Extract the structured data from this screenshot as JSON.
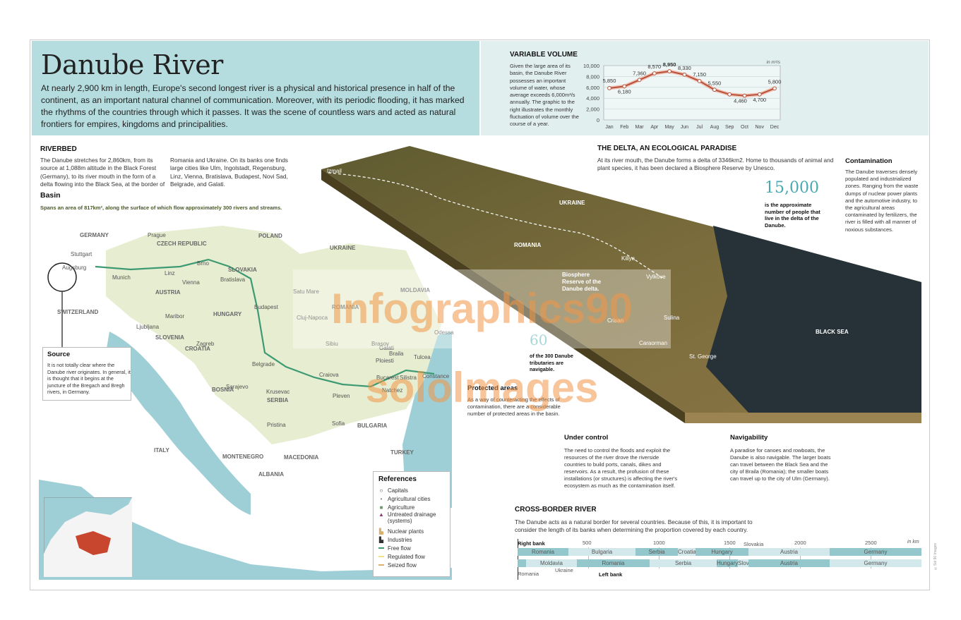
{
  "header": {
    "title": "Danube River",
    "intro": "At nearly 2,900 km in length, Europe's second longest river is a physical and historical presence in half of the continent, as an important natural channel of communication. Moreover, with its periodic flooding, it has marked the rhythms of the countries through which it passes. It was the scene of countless wars and acted as natural frontiers for empires, kingdoms and principalities."
  },
  "volume": {
    "title": "VARIABLE VOLUME",
    "text": "Given the large area of its basin, the Danube River possesses an important volume of water, whose average exceeds 6,000m³/s annually. The graphic to the right illustrates the monthly fluctuation of volume over the course of a year.",
    "unit": "in m³/s"
  },
  "chart_data": {
    "type": "line",
    "categories": [
      "Jan",
      "Feb",
      "Mar",
      "Apr",
      "May",
      "Jun",
      "Jul",
      "Aug",
      "Sep",
      "Oct",
      "Nov",
      "Dec"
    ],
    "values": [
      5850,
      6180,
      7360,
      8570,
      8950,
      8330,
      7150,
      5550,
      4700,
      4460,
      4700,
      5800
    ],
    "data_labels": [
      "5,850",
      "6,180",
      "7,360",
      "8,570",
      "8,950",
      "8,330",
      "7,150",
      "5,550",
      "",
      "4,460",
      "4,700",
      "5,800"
    ],
    "yticks": [
      "0",
      "2,000",
      "4,000",
      "6,000",
      "8,000",
      "10,000"
    ],
    "ylim": [
      0,
      10000
    ],
    "grid": true,
    "ylabel": "in m³/s",
    "highlight": "May",
    "color": "#b5523b"
  },
  "riverbed": {
    "title": "RIVERBED",
    "col1": "The Danube stretches for 2,860km, from its source at 1,088m altitude in the Black Forest (Germany), to its river mouth in the form of a delta flowing into the Black Sea, at the border of",
    "col2": "Romania and Ukraine. On its banks one finds large cities like Ulm, Ingolstadt, Regensburg, Linz, Vienna, Bratislava, Budapest, Novi Sad, Belgrade, and Galati."
  },
  "basin": {
    "title": "Basin",
    "text": "Spans an area of 817km², along the surface of which flow approximately 300 rivers and streams."
  },
  "source": {
    "title": "Source",
    "text": "It is not totally clear where the Danube river originates. In general, it is thought that it begins at the juncture of the Bregach and Bregh rivers, in Germany."
  },
  "map_labels": [
    "GERMANY",
    "CZECH REPUBLIC",
    "POLAND",
    "UKRAINE",
    "SLOVAKIA",
    "AUSTRIA",
    "HUNGARY",
    "SWITZERLAND",
    "SLOVENIA",
    "CROATIA",
    "BOSNIA",
    "SERBIA",
    "ROMANIA",
    "MOLDAVIA",
    "BULGARIA",
    "MONTENEGRO",
    "ITALY",
    "MACEDONIA",
    "ALBANIA",
    "TURKEY",
    "Prague",
    "Stuttgart",
    "Augsburg",
    "Munich",
    "Linz",
    "Brno",
    "Vienna",
    "Bratislava",
    "Budapest",
    "Maribor",
    "Ljubljana",
    "Zagreb",
    "Belgrade",
    "Sarajevo",
    "Krusevac",
    "Pristina",
    "Satu Mare",
    "Cluj-Napoca",
    "Sibiu",
    "Brasov",
    "Galati",
    "Braila",
    "Tulcea",
    "Odessa",
    "Ploiesti",
    "Craiova",
    "Bucarest",
    "Silistra",
    "Constance",
    "Natchez",
    "Pleven",
    "Sofia"
  ],
  "references": {
    "title": "References",
    "items": [
      "Capitals",
      "Agricultural cities",
      "Agriculture",
      "Untreated drainage (systems)",
      "Nuclear plants",
      "Industries",
      "Free flow",
      "Regulated flow",
      "Seized flow"
    ],
    "colors": {
      "free": "#3d9a72",
      "regulated": "#f2e08a",
      "seized": "#e0b070",
      "drainage": "#8a3a78",
      "agriculture": "#6a9a6a"
    }
  },
  "delta": {
    "title": "THE DELTA, AN ECOLOGICAL PARADISE",
    "text": "At its river mouth, the Danube forms a delta of 3346km2. Home to thousands of animal and plant species, it has been declared a Biosphere Reserve by Unesco.",
    "stat": "15,000",
    "stat_text": "is the approximate number of people that live in the delta of the Danube.",
    "labels": [
      "Izmail",
      "UKRAINE",
      "ROMANIA",
      "Kiliya",
      "Vylkove",
      "Biosphere Reserve of the Danube delta.",
      "Sulina",
      "Crisan",
      "Caraorman",
      "St. George",
      "BLACK SEA"
    ]
  },
  "contamination": {
    "title": "Contamination",
    "text": "The Danube traverses densely populated and industrialized zones. Ranging from the waste dumps of nuclear power plants and the automotive industry, to the agricultural areas contaminated by fertilizers, the river is filled with all manner of noxious substances."
  },
  "tributaries": {
    "stat": "60",
    "text": "of the 300 Danube tributaries are navigable."
  },
  "protected": {
    "title": "Protected areas",
    "text": "As a way of counteracting the effects of contamination, there are a considerable number of protected areas in the basin."
  },
  "control": {
    "title": "Under control",
    "text": "The need to control the floods and exploit the resources of the river drove the riverside countries to build ports, canals, dikes and reservoirs. As a result, the profusion of these installations (or structures) is affecting the river's ecosystem as much as the contamination itself."
  },
  "navigability": {
    "title": "Navigability",
    "text": "A paradise for canoes and rowboats, the Danube is also navigable. The larger boats can travel between the Black Sea and the city of Braila (Romania); the smaller boats can travel up to the city of Ulm (Germany)."
  },
  "crossborder": {
    "title": "CROSS-BORDER RIVER",
    "text": "The Danube acts as a natural border for several countries. Because of this, it is important to consider the length of its banks when determining the proportion covered by each country.",
    "right_label": "Right bank",
    "left_label": "Left bank",
    "unit": "in km",
    "ticks": [
      "500",
      "1000",
      "1500",
      "2000",
      "2500"
    ],
    "total_km": 2860,
    "right_bank": [
      {
        "country": "Romania",
        "start": 0,
        "end": 360
      },
      {
        "country": "Bulgaria",
        "start": 360,
        "end": 835
      },
      {
        "country": "Serbia",
        "start": 835,
        "end": 1135
      },
      {
        "country": "Croatia",
        "start": 1135,
        "end": 1260
      },
      {
        "country": "Hungary",
        "start": 1260,
        "end": 1635
      },
      {
        "country": "Austria",
        "start": 1635,
        "end": 2210
      },
      {
        "country": "Germany",
        "start": 2210,
        "end": 2860
      }
    ],
    "left_bank": [
      {
        "country": "",
        "start": 0,
        "end": 60
      },
      {
        "country": "Moldavia",
        "start": 60,
        "end": 420
      },
      {
        "country": "Romania",
        "start": 420,
        "end": 935
      },
      {
        "country": "Serbia",
        "start": 935,
        "end": 1410
      },
      {
        "country": "Hungary",
        "start": 1410,
        "end": 1560
      },
      {
        "country": "Slovakia",
        "start": 1560,
        "end": 1635
      },
      {
        "country": "Austria",
        "start": 1635,
        "end": 2210
      },
      {
        "country": "Germany",
        "start": 2210,
        "end": 2860
      }
    ],
    "callouts": {
      "slovakia": "Slovakia",
      "romania": "Romania",
      "ukraine": "Ukraine"
    },
    "colors": {
      "dark": "#93c7cb",
      "light": "#d3e8ea"
    }
  },
  "watermark": "Infographics90 sololmages",
  "credit": "©Sol 90 Images"
}
